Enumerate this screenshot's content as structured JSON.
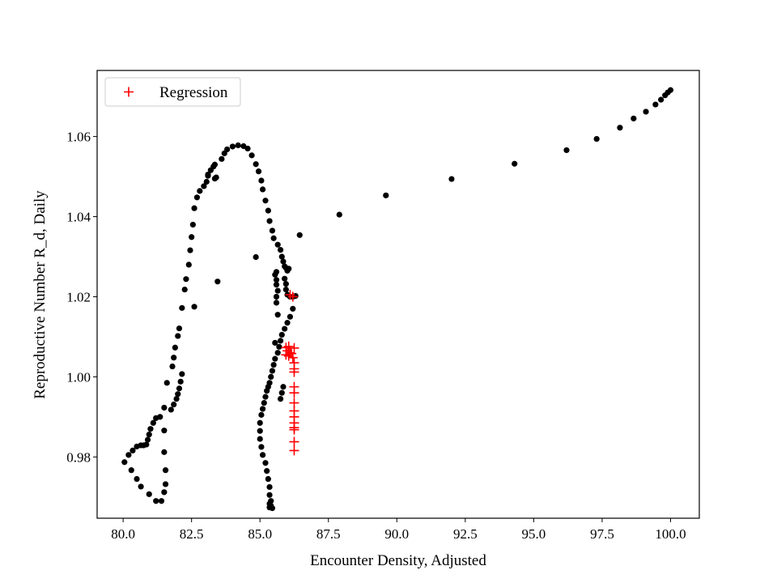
{
  "chart_data": {
    "type": "scatter",
    "title": "",
    "xlabel": "Encounter Density, Adjusted",
    "ylabel": "Reproductive Number R_d, Daily",
    "xlim": [
      79.05,
      101.05
    ],
    "ylim": [
      0.9647,
      1.0765
    ],
    "xticks": [
      "80.0",
      "82.5",
      "85.0",
      "87.5",
      "90.0",
      "92.5",
      "95.0",
      "97.5",
      "100.0"
    ],
    "yticks": [
      "0.98",
      "1.00",
      "1.02",
      "1.04",
      "1.06"
    ],
    "grid": false,
    "legend_position": "top-left",
    "legend_label": "Regression",
    "colors": {
      "observed": "#000000",
      "regression": "#ff0000"
    },
    "series": [
      {
        "marker": "dot",
        "color": "#000000",
        "points": [
          [
            80.05,
            0.9787
          ],
          [
            80.2,
            0.9805
          ],
          [
            80.35,
            0.9816
          ],
          [
            80.5,
            0.9826
          ],
          [
            80.65,
            0.9829
          ],
          [
            80.75,
            0.9829
          ],
          [
            80.85,
            0.9831
          ],
          [
            80.9,
            0.9843
          ],
          [
            80.95,
            0.9856
          ],
          [
            81.0,
            0.987
          ],
          [
            81.1,
            0.9885
          ],
          [
            81.2,
            0.9897
          ],
          [
            81.35,
            0.99
          ],
          [
            80.3,
            0.9767
          ],
          [
            80.5,
            0.9745
          ],
          [
            80.65,
            0.9726
          ],
          [
            80.95,
            0.9707
          ],
          [
            81.2,
            0.969
          ],
          [
            81.4,
            0.969
          ],
          [
            81.5,
            0.9712
          ],
          [
            81.55,
            0.9732
          ],
          [
            81.55,
            0.9767
          ],
          [
            81.5,
            0.9812
          ],
          [
            81.5,
            0.9866
          ],
          [
            81.5,
            0.9923
          ],
          [
            81.6,
            0.9985
          ],
          [
            81.75,
            0.9918
          ],
          [
            81.85,
            0.9931
          ],
          [
            81.95,
            0.9945
          ],
          [
            82.0,
            0.9957
          ],
          [
            82.05,
            0.9971
          ],
          [
            82.1,
            0.9988
          ],
          [
            82.15,
            1.0007
          ],
          [
            81.8,
            1.0026
          ],
          [
            81.85,
            1.0048
          ],
          [
            81.9,
            1.0073
          ],
          [
            82.0,
            1.0102
          ],
          [
            82.05,
            1.0121
          ],
          [
            82.15,
            1.0172
          ],
          [
            82.25,
            1.0218
          ],
          [
            82.3,
            1.0244
          ],
          [
            82.4,
            1.028
          ],
          [
            82.45,
            1.0316
          ],
          [
            82.5,
            1.0349
          ],
          [
            82.55,
            1.038
          ],
          [
            82.6,
            1.0421
          ],
          [
            82.7,
            1.0448
          ],
          [
            82.8,
            1.0464
          ],
          [
            82.95,
            1.0476
          ],
          [
            83.05,
            1.0487
          ],
          [
            83.1,
            1.0502
          ],
          [
            83.2,
            1.0516
          ],
          [
            83.3,
            1.0525
          ],
          [
            83.35,
            1.053
          ],
          [
            83.4,
            1.0498
          ],
          [
            83.1,
            1.0505
          ],
          [
            83.35,
            1.0495
          ],
          [
            83.6,
            1.0544
          ],
          [
            83.7,
            1.0558
          ],
          [
            83.8,
            1.0568
          ],
          [
            84.0,
            1.0575
          ],
          [
            84.2,
            1.0578
          ],
          [
            84.4,
            1.0576
          ],
          [
            84.55,
            1.057
          ],
          [
            84.7,
            1.0553
          ],
          [
            84.85,
            1.0531
          ],
          [
            84.95,
            1.0513
          ],
          [
            85.05,
            1.049
          ],
          [
            85.1,
            1.0468
          ],
          [
            85.2,
            1.044
          ],
          [
            85.3,
            1.0415
          ],
          [
            85.35,
            1.0389
          ],
          [
            85.45,
            1.0365
          ],
          [
            85.5,
            1.0346
          ],
          [
            85.65,
            1.033
          ],
          [
            85.75,
            1.0317
          ],
          [
            85.8,
            1.03
          ],
          [
            85.85,
            1.0288
          ],
          [
            85.9,
            1.0276
          ],
          [
            85.95,
            1.0272
          ],
          [
            86.05,
            1.027
          ],
          [
            86.0,
            1.0265
          ],
          [
            85.6,
            1.0262
          ],
          [
            85.55,
            1.0255
          ],
          [
            85.6,
            1.0242
          ],
          [
            85.6,
            1.023
          ],
          [
            85.65,
            1.0215
          ],
          [
            85.6,
            1.02
          ],
          [
            85.6,
            1.0185
          ],
          [
            85.9,
            1.0245
          ],
          [
            85.95,
            1.0232
          ],
          [
            85.95,
            1.0218
          ],
          [
            86.0,
            1.0205
          ],
          [
            86.1,
            1.02
          ],
          [
            86.2,
            1.02
          ],
          [
            86.3,
            1.0202
          ],
          [
            86.2,
            1.017
          ],
          [
            86.1,
            1.015
          ],
          [
            86.0,
            1.0135
          ],
          [
            85.9,
            1.012
          ],
          [
            85.8,
            1.0105
          ],
          [
            85.75,
            1.009
          ],
          [
            85.7,
            1.0075
          ],
          [
            85.65,
            1.006
          ],
          [
            85.55,
            1.0045
          ],
          [
            85.5,
            1.003
          ],
          [
            85.45,
            1.0015
          ],
          [
            85.4,
            1.0
          ],
          [
            85.35,
            0.9985
          ],
          [
            85.3,
            0.9975
          ],
          [
            85.25,
            0.9965
          ],
          [
            85.2,
            0.995
          ],
          [
            85.15,
            0.9935
          ],
          [
            85.1,
            0.992
          ],
          [
            85.05,
            0.9905
          ],
          [
            85.0,
            0.9885
          ],
          [
            85.0,
            0.9865
          ],
          [
            85.0,
            0.9845
          ],
          [
            85.05,
            0.9825
          ],
          [
            85.1,
            0.9805
          ],
          [
            85.2,
            0.9785
          ],
          [
            85.25,
            0.9765
          ],
          [
            85.3,
            0.9745
          ],
          [
            85.35,
            0.9725
          ],
          [
            85.35,
            0.9705
          ],
          [
            85.4,
            0.969
          ],
          [
            85.4,
            0.9678
          ],
          [
            85.45,
            0.9672
          ],
          [
            85.35,
            0.9674
          ],
          [
            85.35,
            0.9683
          ],
          [
            85.75,
            0.9945
          ],
          [
            85.8,
            0.996
          ],
          [
            85.85,
            0.9975
          ],
          [
            85.55,
            1.0085
          ],
          [
            85.65,
            1.0155
          ],
          [
            84.85,
            1.0299
          ],
          [
            83.45,
            1.0238
          ],
          [
            82.6,
            1.0175
          ],
          [
            86.45,
            1.0354
          ],
          [
            87.9,
            1.0405
          ],
          [
            89.6,
            1.0453
          ],
          [
            92.0,
            1.0494
          ],
          [
            94.3,
            1.0532
          ],
          [
            96.2,
            1.0566
          ],
          [
            97.3,
            1.0594
          ],
          [
            98.15,
            1.0622
          ],
          [
            98.65,
            1.0645
          ],
          [
            99.1,
            1.0662
          ],
          [
            99.45,
            1.068
          ],
          [
            99.65,
            1.0692
          ],
          [
            99.8,
            1.0703
          ],
          [
            99.9,
            1.071
          ],
          [
            100.0,
            1.0716
          ]
        ]
      },
      {
        "name": "Regression",
        "marker": "plus",
        "color": "#ff0000",
        "points": [
          [
            86.2,
            1.02
          ],
          [
            86.1,
            1.0205
          ],
          [
            85.95,
            1.0073
          ],
          [
            86.05,
            1.0076
          ],
          [
            86.0,
            1.0065
          ],
          [
            86.1,
            1.006
          ],
          [
            85.95,
            1.0055
          ],
          [
            86.05,
            1.0052
          ],
          [
            86.15,
            1.0058
          ],
          [
            86.25,
            1.0072
          ],
          [
            86.2,
            1.0048
          ],
          [
            86.25,
            1.0035
          ],
          [
            86.25,
            1.002
          ],
          [
            86.25,
            1.0012
          ],
          [
            86.25,
            0.9975
          ],
          [
            86.25,
            0.996
          ],
          [
            86.25,
            0.9935
          ],
          [
            86.25,
            0.9915
          ],
          [
            86.25,
            0.99
          ],
          [
            86.25,
            0.9885
          ],
          [
            86.25,
            0.9873
          ],
          [
            86.25,
            0.9868
          ],
          [
            86.25,
            0.9838
          ],
          [
            86.25,
            0.9816
          ]
        ]
      }
    ]
  }
}
